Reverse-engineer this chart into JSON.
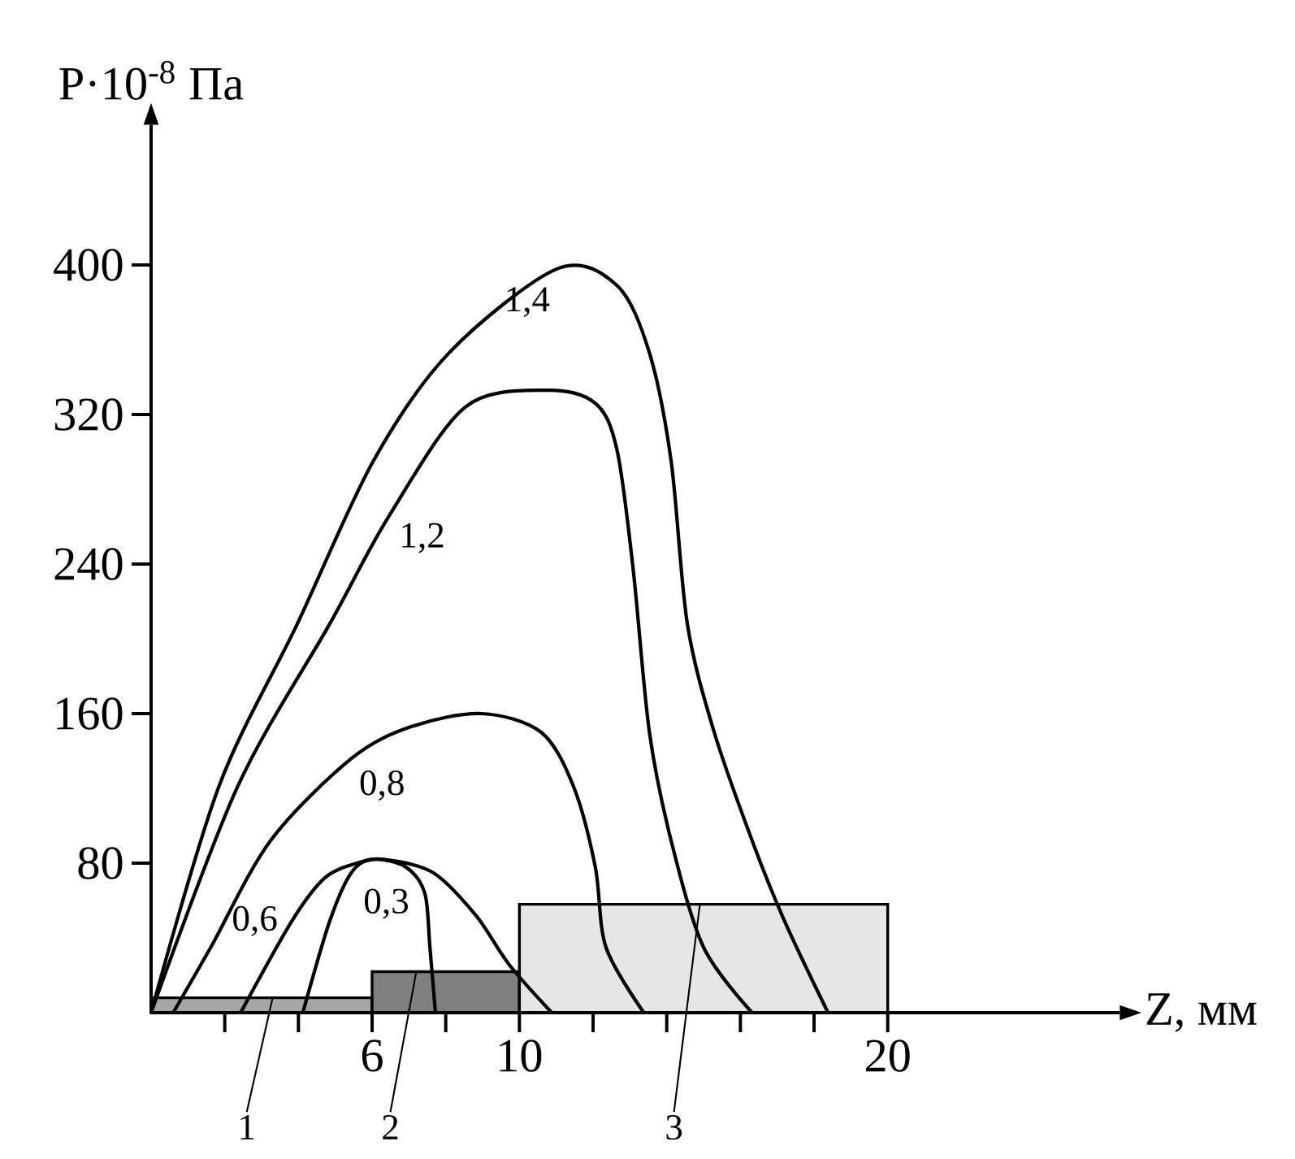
{
  "chart_data": {
    "type": "line",
    "xlabel": "Z, мм",
    "ylabel": "P·10$^{-8}$ Па",
    "xlim": [
      0,
      26.3
    ],
    "ylim": [
      0,
      475
    ],
    "xticks": [
      {
        "value": 2,
        "label": null
      },
      {
        "value": 4,
        "label": null
      },
      6,
      {
        "value": 8,
        "label": null
      },
      10,
      {
        "value": 12,
        "label": null
      },
      {
        "value": 14,
        "label": null
      },
      {
        "value": 16,
        "label": null
      },
      {
        "value": 18,
        "label": null
      },
      20
    ],
    "yticks": [
      80,
      160,
      240,
      320,
      400
    ],
    "series": [
      {
        "type": "area",
        "color": "#a6a6a6",
        "x": [
          0,
          6
        ],
        "values": [
          8,
          8
        ]
      },
      {
        "type": "area",
        "color": "#808080",
        "x": [
          6,
          10
        ],
        "values": [
          22,
          22
        ]
      },
      {
        "type": "area",
        "color": "#e6e6e6",
        "x": [
          10,
          20
        ],
        "values": [
          58,
          58
        ]
      },
      {
        "name": "1,4",
        "color": "#000000",
        "x": [
          0,
          1.84,
          3.97,
          6.03,
          8.09,
          11.03,
          12.65,
          13.53,
          14.12,
          14.56,
          15.29,
          16.32,
          17.2,
          18.38
        ],
        "values": [
          0,
          121,
          208,
          295,
          353,
          398,
          389,
          353,
          295,
          208,
          150,
          92,
          49,
          0
        ]
      },
      {
        "name": "1,2",
        "color": "#000000",
        "x": [
          0,
          2.35,
          4.85,
          6.47,
          8.53,
          10.74,
          12.06,
          12.65,
          13.09,
          13.53,
          14.12,
          15.0,
          16.32
        ],
        "values": [
          0,
          121,
          208,
          266,
          324,
          333,
          326,
          301,
          237,
          150,
          92,
          35,
          0
        ]
      },
      {
        "name": "0,8",
        "color": "#000000",
        "x": [
          0.6,
          1.62,
          3.24,
          5.44,
          7.06,
          8.97,
          10.59,
          11.47,
          12.06,
          12.35,
          13.38
        ],
        "values": [
          0,
          35,
          92,
          136,
          153,
          160,
          150,
          121,
          78,
          35,
          0
        ]
      },
      {
        "name": "0,6",
        "color": "#000000",
        "x": [
          2.43,
          3.82,
          4.71,
          5.59,
          6.32,
          7.65,
          8.82,
          9.71,
          10.88
        ],
        "values": [
          0,
          49,
          72,
          80,
          82,
          75,
          52,
          26,
          0
        ]
      },
      {
        "name": "0,3",
        "color": "#000000",
        "x": [
          4.12,
          4.85,
          5.44,
          6.03,
          6.91,
          7.43,
          7.57,
          7.72
        ],
        "values": [
          0,
          49,
          75,
          82,
          78,
          64,
          35,
          0
        ]
      }
    ],
    "annotations": [
      {
        "text": "1",
        "x": 3.3,
        "y": 8
      },
      {
        "text": "2",
        "x": 7.2,
        "y": 22
      },
      {
        "text": "3",
        "x": 14.9,
        "y": 58
      }
    ]
  }
}
